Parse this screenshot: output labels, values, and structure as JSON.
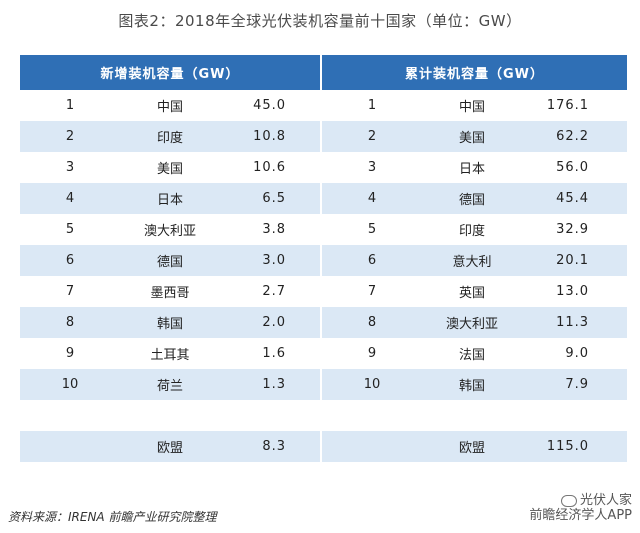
{
  "title": "图表2：2018年全球光伏装机容量前十国家（单位：GW）",
  "headers": {
    "left": "新增装机容量（GW）",
    "right": "累计装机容量（GW）"
  },
  "rows": [
    {
      "rank_l": "1",
      "country_l": "中国",
      "value_l": "45.0",
      "rank_r": "1",
      "country_r": "中国",
      "value_r": "176.1"
    },
    {
      "rank_l": "2",
      "country_l": "印度",
      "value_l": "10.8",
      "rank_r": "2",
      "country_r": "美国",
      "value_r": "62.2"
    },
    {
      "rank_l": "3",
      "country_l": "美国",
      "value_l": "10.6",
      "rank_r": "3",
      "country_r": "日本",
      "value_r": "56.0"
    },
    {
      "rank_l": "4",
      "country_l": "日本",
      "value_l": "6.5",
      "rank_r": "4",
      "country_r": "德国",
      "value_r": "45.4"
    },
    {
      "rank_l": "5",
      "country_l": "澳大利亚",
      "value_l": "3.8",
      "rank_r": "5",
      "country_r": "印度",
      "value_r": "32.9"
    },
    {
      "rank_l": "6",
      "country_l": "德国",
      "value_l": "3.0",
      "rank_r": "6",
      "country_r": "意大利",
      "value_r": "20.1"
    },
    {
      "rank_l": "7",
      "country_l": "墨西哥",
      "value_l": "2.7",
      "rank_r": "7",
      "country_r": "英国",
      "value_r": "13.0"
    },
    {
      "rank_l": "8",
      "country_l": "韩国",
      "value_l": "2.0",
      "rank_r": "8",
      "country_r": "澳大利亚",
      "value_r": "11.3"
    },
    {
      "rank_l": "9",
      "country_l": "土耳其",
      "value_l": "1.6",
      "rank_r": "9",
      "country_r": "法国",
      "value_r": "9.0"
    },
    {
      "rank_l": "10",
      "country_l": "荷兰",
      "value_l": "1.3",
      "rank_r": "10",
      "country_r": "韩国",
      "value_r": "7.9"
    },
    {
      "rank_l": "",
      "country_l": "",
      "value_l": "",
      "rank_r": "",
      "country_r": "",
      "value_r": ""
    },
    {
      "rank_l": "",
      "country_l": "欧盟",
      "value_l": "8.3",
      "rank_r": "",
      "country_r": "欧盟",
      "value_r": "115.0"
    }
  ],
  "source": "资料来源：IRENA 前瞻产业研究院整理",
  "watermark": {
    "line1": "光伏人家",
    "line2": "前瞻经济学人APP"
  },
  "colors": {
    "header_bg": "#2f6fb5",
    "stripe": "#dbe8f5"
  }
}
